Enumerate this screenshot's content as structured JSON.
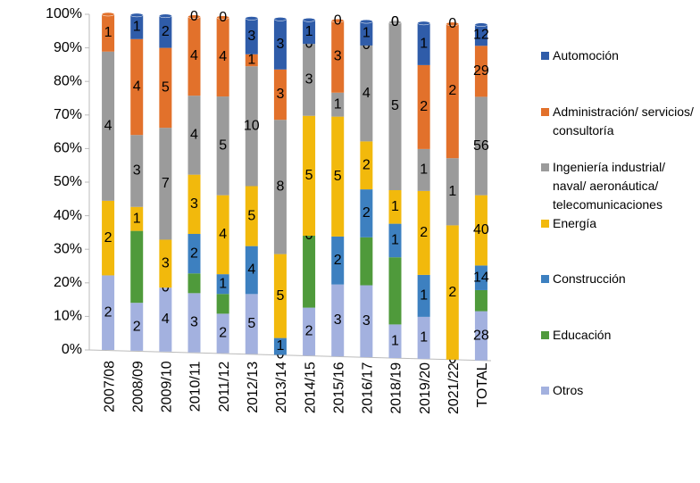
{
  "chart_data": {
    "type": "bar",
    "stacking": "percent",
    "categories": [
      "2007/08",
      "2008/09",
      "2009/10",
      "2010/11",
      "2011/12",
      "2012/13",
      "2013/14",
      "2014/15",
      "2015/16",
      "2016/17",
      "2018/19",
      "2019/20",
      "2021/22",
      "TOTAL"
    ],
    "series": [
      {
        "name": "Otros",
        "color": "#a3b1df",
        "values": [
          2,
          2,
          4,
          3,
          2,
          5,
          0,
          2,
          3,
          3,
          1,
          1,
          0,
          28
        ]
      },
      {
        "name": "Educación",
        "color": "#4f9a3b",
        "values": [
          0,
          3,
          0,
          1,
          1,
          0,
          0,
          3,
          0,
          2,
          2,
          0,
          0,
          12
        ],
        "value_labels": [
          null,
          null,
          "0",
          null,
          null,
          null,
          null,
          null,
          null,
          null,
          null,
          null,
          null,
          null
        ]
      },
      {
        "name": "Construcción",
        "color": "#3d80c0",
        "values": [
          0,
          0,
          0,
          2,
          1,
          4,
          1,
          0,
          2,
          2,
          1,
          1,
          0,
          14
        ],
        "value_labels": [
          null,
          null,
          null,
          "2",
          "1",
          "4",
          "1",
          "0",
          "2",
          "2",
          "1",
          "1",
          null,
          "14"
        ]
      },
      {
        "name": "Energía",
        "color": "#f2b90c",
        "values": [
          2,
          1,
          3,
          3,
          4,
          5,
          5,
          5,
          5,
          2,
          1,
          2,
          2,
          40
        ]
      },
      {
        "name": "Ingeniería industrial/ naval/ aeronáutica/ telecomunicaciones",
        "color": "#9b9b9b",
        "values": [
          4,
          3,
          7,
          4,
          5,
          10,
          8,
          3,
          1,
          4,
          5,
          1,
          1,
          56
        ]
      },
      {
        "name": "Administración/ servicios/ consultoría",
        "color": "#e2712b",
        "values": [
          1,
          4,
          5,
          4,
          4,
          1,
          3,
          0,
          3,
          0,
          0,
          2,
          2,
          29
        ]
      },
      {
        "name": "Automoción",
        "color": "#2f5ca9",
        "values": [
          0,
          1,
          2,
          0,
          0,
          3,
          3,
          1,
          0,
          1,
          0,
          1,
          0,
          12
        ],
        "value_labels": [
          null,
          "1",
          "2",
          "0",
          "0",
          "3",
          "3",
          "1",
          "0",
          "1",
          "0",
          "1",
          "0",
          "12"
        ]
      }
    ],
    "ylim": [
      0,
      100
    ],
    "yticks": [
      {
        "value": 0,
        "label": "0%"
      },
      {
        "value": 10,
        "label": "10%"
      },
      {
        "value": 20,
        "label": "20%"
      },
      {
        "value": 30,
        "label": "30%"
      },
      {
        "value": 40,
        "label": "40%"
      },
      {
        "value": 50,
        "label": "50%"
      },
      {
        "value": 60,
        "label": "60%"
      },
      {
        "value": 70,
        "label": "70%"
      },
      {
        "value": 80,
        "label": "80%"
      },
      {
        "value": 90,
        "label": "90%"
      },
      {
        "value": 100,
        "label": "100%"
      }
    ],
    "legend": "right"
  }
}
